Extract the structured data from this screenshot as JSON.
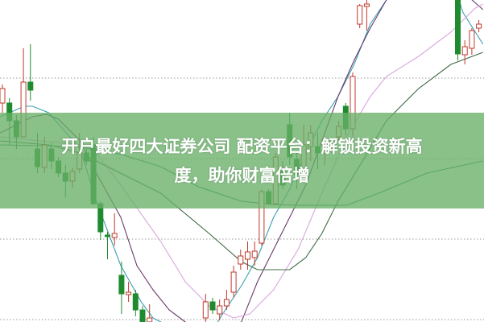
{
  "banner": {
    "title_line1": "开户最好四大证券公司 配资平台：解锁投资新高",
    "title_line2": "度，助你财富倍增",
    "color": "#68b068"
  },
  "chart_data": {
    "type": "candlestick",
    "title": "",
    "xlabel": "",
    "ylabel": "",
    "ylim": [
      -0.3,
      39.7
    ],
    "xlim": [
      -0.3,
      68.7
    ],
    "grid": {
      "horizontal": true,
      "style": "dotted",
      "levels": [
        0,
        10,
        20,
        30
      ]
    },
    "colors": {
      "up": "#c0392b",
      "down": "#1e8c2e"
    },
    "candles_fields": [
      "index",
      "open",
      "close",
      "high",
      "low"
    ],
    "candles": [
      [
        0,
        26.9,
        28.7,
        29.2,
        25.7
      ],
      [
        1,
        26.9,
        24.7,
        27.5,
        21.7
      ],
      [
        2,
        24.7,
        22.7,
        25.4,
        21.2
      ],
      [
        3,
        22.7,
        29.5,
        33.7,
        22.7
      ],
      [
        4,
        29.5,
        28.5,
        34.2,
        27.2
      ],
      [
        5,
        21.2,
        19.0,
        23.2,
        18.2
      ],
      [
        6,
        18.9,
        21.7,
        22.7,
        18.2
      ],
      [
        7,
        21.2,
        19.7,
        21.9,
        18.7
      ],
      [
        8,
        19.7,
        18.2,
        20.2,
        17.7
      ],
      [
        9,
        18.2,
        17.2,
        19.2,
        15.2
      ],
      [
        10,
        17.2,
        18.4,
        18.9,
        16.4
      ],
      [
        11,
        18.7,
        20.7,
        23.2,
        18.2
      ],
      [
        12,
        20.7,
        19.7,
        21.7,
        19.2
      ],
      [
        13,
        21.7,
        14.4,
        22.7,
        14.2
      ],
      [
        14,
        14.4,
        10.9,
        14.7,
        9.9
      ],
      [
        15,
        10.5,
        10.3,
        10.9,
        7.5
      ],
      [
        16,
        10.2,
        10.7,
        13.2,
        9.2
      ],
      [
        17,
        5.5,
        3.2,
        7.2,
        0.7
      ],
      [
        18,
        3.1,
        3.4,
        4.7,
        2.2
      ],
      [
        19,
        3.2,
        1.2,
        3.7,
        0.4
      ],
      [
        20,
        1.2,
        -0.3,
        1.7,
        -0.5
      ],
      [
        21,
        -0.3,
        0.2,
        1.9,
        -0.5
      ],
      [
        29,
        0.2,
        2.2,
        3.2,
        -0.5
      ],
      [
        30,
        2.2,
        1.2,
        2.7,
        0.7
      ],
      [
        31,
        0.7,
        1.7,
        2.5,
        -0.1
      ],
      [
        32,
        1.7,
        2.5,
        3.7,
        1.2
      ],
      [
        33,
        3.4,
        5.9,
        6.7,
        2.7
      ],
      [
        34,
        6.9,
        7.9,
        8.7,
        6.2
      ],
      [
        35,
        7.5,
        8.4,
        9.7,
        6.2
      ],
      [
        36,
        7.7,
        8.5,
        9.7,
        6.7
      ],
      [
        37,
        9.5,
        15.9,
        16.2,
        9.2
      ],
      [
        38,
        15.9,
        14.4,
        16.2,
        14.2
      ],
      [
        39,
        14.4,
        20.2,
        20.7,
        14.2
      ],
      [
        40,
        18.7,
        16.7,
        19.7,
        16.2
      ],
      [
        41,
        24.2,
        20.2,
        25.7,
        19.2
      ],
      [
        42,
        19.9,
        18.0,
        20.7,
        16.2
      ],
      [
        43,
        18.4,
        21.7,
        24.2,
        17.7
      ],
      [
        44,
        21.5,
        23.2,
        24.2,
        19.7
      ],
      [
        45,
        21.5,
        20.7,
        23.2,
        18.7
      ],
      [
        46,
        21.7,
        21.9,
        22.2,
        19.2
      ],
      [
        47,
        22.0,
        21.9,
        22.5,
        20.7
      ],
      [
        48,
        22.7,
        24.0,
        24.7,
        22.2
      ],
      [
        49,
        26.5,
        23.7,
        26.9,
        22.9
      ],
      [
        50,
        23.7,
        30.2,
        30.7,
        22.7
      ],
      [
        51,
        36.7,
        39.0,
        39.2,
        36.2
      ],
      [
        52,
        38.9,
        39.2,
        39.9,
        35.9
      ],
      [
        65,
        39.9,
        33.0,
        39.9,
        32.2
      ],
      [
        66,
        32.9,
        33.9,
        34.7,
        31.7
      ],
      [
        67,
        33.7,
        35.9,
        36.2,
        32.9
      ],
      [
        68,
        36.2,
        36.7,
        37.2,
        35.7
      ]
    ],
    "moving_averages": [
      {
        "color": "#3a9fb0",
        "points": [
          [
            -0.3,
            25.2
          ],
          [
            3.1,
            26.5
          ],
          [
            4.3,
            26.5
          ],
          [
            6.6,
            25.7
          ],
          [
            11.1,
            21.2
          ],
          [
            13.4,
            14.7
          ],
          [
            16.9,
            6.7
          ],
          [
            19.8,
            2.2
          ],
          [
            21.5,
            0.2
          ],
          [
            22.6,
            -0.3
          ],
          [
            26.1,
            -2
          ],
          [
            29.5,
            -2
          ],
          [
            31.8,
            1.2
          ],
          [
            34.1,
            4.2
          ],
          [
            36.4,
            7.7
          ],
          [
            38.7,
            12.7
          ],
          [
            41,
            16.2
          ],
          [
            43.3,
            20.7
          ],
          [
            45.6,
            24.7
          ],
          [
            47.9,
            27.7
          ],
          [
            50.2,
            31.7
          ],
          [
            52.5,
            36.7
          ],
          [
            54.8,
            39.7
          ],
          [
            57,
            43
          ],
          [
            63,
            43
          ],
          [
            65.2,
            39.7
          ],
          [
            65.7,
            38.2
          ],
          [
            67.5,
            35.7
          ],
          [
            68.6,
            34.2
          ]
        ]
      },
      {
        "color": "#6a3a6a",
        "points": [
          [
            -0.3,
            23.2
          ],
          [
            4.3,
            25.2
          ],
          [
            6.3,
            25.5
          ],
          [
            8,
            24.9
          ],
          [
            11.1,
            22.2
          ],
          [
            13.4,
            18.2
          ],
          [
            16.9,
            12.7
          ],
          [
            19.2,
            6.7
          ],
          [
            21.5,
            3.7
          ],
          [
            23.8,
            1.2
          ],
          [
            26.1,
            -0.3
          ],
          [
            29,
            -2
          ],
          [
            34.1,
            -0.3
          ],
          [
            36.4,
            4.7
          ],
          [
            38.7,
            8.7
          ],
          [
            43.3,
            16.7
          ],
          [
            45.6,
            22.2
          ],
          [
            47.9,
            27.7
          ],
          [
            50.2,
            32.2
          ],
          [
            52.5,
            36.2
          ],
          [
            54.8,
            39.7
          ],
          [
            57,
            43
          ],
          [
            63,
            43
          ],
          [
            66,
            40.5
          ],
          [
            68.6,
            38.5
          ]
        ]
      },
      {
        "color": "#d9a6dc",
        "points": [
          [
            -0.3,
            22.7
          ],
          [
            11.1,
            21.7
          ],
          [
            13.4,
            20.7
          ],
          [
            16.9,
            16.7
          ],
          [
            22.6,
            9.7
          ],
          [
            26.1,
            4.7
          ],
          [
            29.5,
            1.7
          ],
          [
            33,
            0.2
          ],
          [
            35.3,
            0.7
          ],
          [
            38.7,
            3.7
          ],
          [
            42.2,
            8.7
          ],
          [
            45.6,
            15.7
          ],
          [
            49.1,
            22.7
          ],
          [
            52.5,
            27.7
          ],
          [
            54.8,
            30.2
          ],
          [
            59.4,
            32.7
          ],
          [
            64,
            35.7
          ],
          [
            67.5,
            38.7
          ],
          [
            68.6,
            39.2
          ]
        ]
      },
      {
        "color": "#3d6b45",
        "points": [
          [
            -0.3,
            22.2
          ],
          [
            6.6,
            21.7
          ],
          [
            11.1,
            20.7
          ],
          [
            22.6,
            15.7
          ],
          [
            29.5,
            10.7
          ],
          [
            34.1,
            7.2
          ],
          [
            36.4,
            6.2
          ],
          [
            41,
            6.2
          ],
          [
            43.3,
            7.7
          ],
          [
            45.6,
            10.7
          ],
          [
            47.9,
            14.7
          ],
          [
            51.4,
            19.7
          ],
          [
            54.8,
            24.7
          ],
          [
            59.4,
            28.7
          ],
          [
            64,
            31.7
          ],
          [
            68.6,
            33.2
          ]
        ]
      },
      {
        "color": "#2e8b57",
        "points": [
          [
            -0.3,
            21.7
          ],
          [
            11.1,
            21.5
          ],
          [
            17,
            20.5
          ],
          [
            22.6,
            19
          ],
          [
            28,
            16.5
          ],
          [
            34.1,
            14.7
          ],
          [
            38.7,
            14.3
          ],
          [
            42.2,
            14.2
          ],
          [
            49.1,
            14.2
          ],
          [
            53.7,
            15.7
          ],
          [
            60.6,
            18.2
          ],
          [
            68.6,
            19.7
          ]
        ]
      }
    ]
  }
}
